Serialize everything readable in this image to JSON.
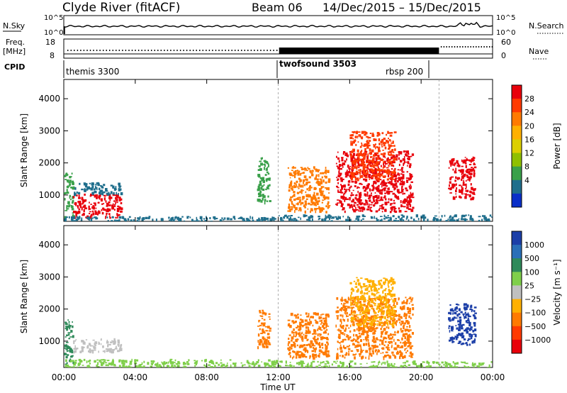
{
  "header": {
    "station": "Clyde River (fitACF)",
    "beam": "Beam 06",
    "dates": "14/Dec/2015 – 15/Dec/2015"
  },
  "top_panels": {
    "nsky_label": "N.Sky",
    "nsky_top": "10^5",
    "nsky_bottom": "10^0",
    "nsearch_label": "N.Search",
    "nsearch_top": "10^5",
    "nsearch_bottom": "10^0",
    "freq_label_1": "Freq.",
    "freq_label_2": "[MHz]",
    "freq_top": "18",
    "freq_bottom": "8",
    "nave_label": "Nave",
    "nave_top": "60",
    "nave_bottom": "0",
    "cpid_label": "CPID",
    "cpid": [
      {
        "name": "themis 3300",
        "start_hour": 0
      },
      {
        "name": "twofsound 3503",
        "start_hour": 12
      },
      {
        "name": "rbsp 200",
        "start_hour": 21
      }
    ]
  },
  "chart_data": [
    {
      "type": "heatmap",
      "name": "power",
      "ylabel": "Slant Range [km]",
      "yticks": [
        1000,
        2000,
        3000,
        4000
      ],
      "ylim": [
        180,
        4600
      ],
      "xlim": [
        0,
        24
      ],
      "colorbar": {
        "label": "Power [dB]",
        "ticks": [
          "28",
          "24",
          "20",
          "16",
          "12",
          "8",
          "4"
        ],
        "colors": [
          "#e8000b",
          "#ff3a00",
          "#ff7a00",
          "#ffb000",
          "#dccf00",
          "#8fc000",
          "#3aa04a",
          "#1f6e8c",
          "#0a2fc8"
        ]
      },
      "regions": [
        {
          "t0": 0.0,
          "t1": 0.5,
          "r0": 300,
          "r1": 1700,
          "color": "#3aa04a"
        },
        {
          "t0": 0.5,
          "t1": 3.2,
          "r0": 300,
          "r1": 1050,
          "color": "#e8000b"
        },
        {
          "t0": 0.5,
          "t1": 3.2,
          "r0": 1050,
          "r1": 1400,
          "color": "#1f6e8c"
        },
        {
          "t0": 0.0,
          "t1": 12.0,
          "r0": 200,
          "r1": 350,
          "color": "#1f6e8c"
        },
        {
          "t0": 10.8,
          "t1": 11.5,
          "r0": 800,
          "r1": 2200,
          "color": "#3aa04a"
        },
        {
          "t0": 12.5,
          "t1": 14.8,
          "r0": 500,
          "r1": 1900,
          "color": "#ff7a00"
        },
        {
          "t0": 15.2,
          "t1": 19.5,
          "r0": 500,
          "r1": 2400,
          "color": "#e8000b"
        },
        {
          "t0": 16.0,
          "t1": 18.5,
          "r0": 1500,
          "r1": 3000,
          "color": "#ff3a00"
        },
        {
          "t0": 21.5,
          "t1": 23.0,
          "r0": 900,
          "r1": 2200,
          "color": "#e8000b"
        },
        {
          "t0": 12.0,
          "t1": 24.0,
          "r0": 200,
          "r1": 400,
          "color": "#1f6e8c"
        }
      ]
    },
    {
      "type": "heatmap",
      "name": "velocity",
      "ylabel": "Slant Range [km]",
      "xlabel": "Time UT",
      "xticks": [
        "00:00",
        "04:00",
        "08:00",
        "12:00",
        "16:00",
        "20:00",
        "00:00"
      ],
      "yticks": [
        1000,
        2000,
        3000,
        4000
      ],
      "ylim": [
        180,
        4600
      ],
      "xlim": [
        0,
        24
      ],
      "colorbar": {
        "label": "Velocity [m s⁻¹]",
        "ticks": [
          "1000",
          "500",
          "100",
          "25",
          "−25",
          "−100",
          "−500",
          "−1000"
        ],
        "colors": [
          "#1c3fa8",
          "#2a6fb8",
          "#2f8a5a",
          "#7fcf4a",
          "#c0c0c0",
          "#ffb000",
          "#ff7a00",
          "#ff3a00",
          "#e8000b"
        ]
      },
      "regions": [
        {
          "t0": 0.0,
          "t1": 0.5,
          "r0": 300,
          "r1": 1700,
          "color": "#2f8a5a"
        },
        {
          "t0": 0.5,
          "t1": 3.2,
          "r0": 700,
          "r1": 1100,
          "color": "#c0c0c0"
        },
        {
          "t0": 0.0,
          "t1": 12.0,
          "r0": 200,
          "r1": 450,
          "color": "#7fcf4a"
        },
        {
          "t0": 10.8,
          "t1": 11.5,
          "r0": 800,
          "r1": 2000,
          "color": "#ff7a00"
        },
        {
          "t0": 12.5,
          "t1": 14.8,
          "r0": 500,
          "r1": 1900,
          "color": "#ff7a00"
        },
        {
          "t0": 15.2,
          "t1": 19.5,
          "r0": 500,
          "r1": 2400,
          "color": "#ff7a00"
        },
        {
          "t0": 16.0,
          "t1": 18.5,
          "r0": 1500,
          "r1": 3000,
          "color": "#ffb000"
        },
        {
          "t0": 21.5,
          "t1": 23.0,
          "r0": 900,
          "r1": 2200,
          "color": "#1c3fa8"
        },
        {
          "t0": 12.0,
          "t1": 24.0,
          "r0": 200,
          "r1": 400,
          "color": "#7fcf4a"
        }
      ]
    }
  ]
}
